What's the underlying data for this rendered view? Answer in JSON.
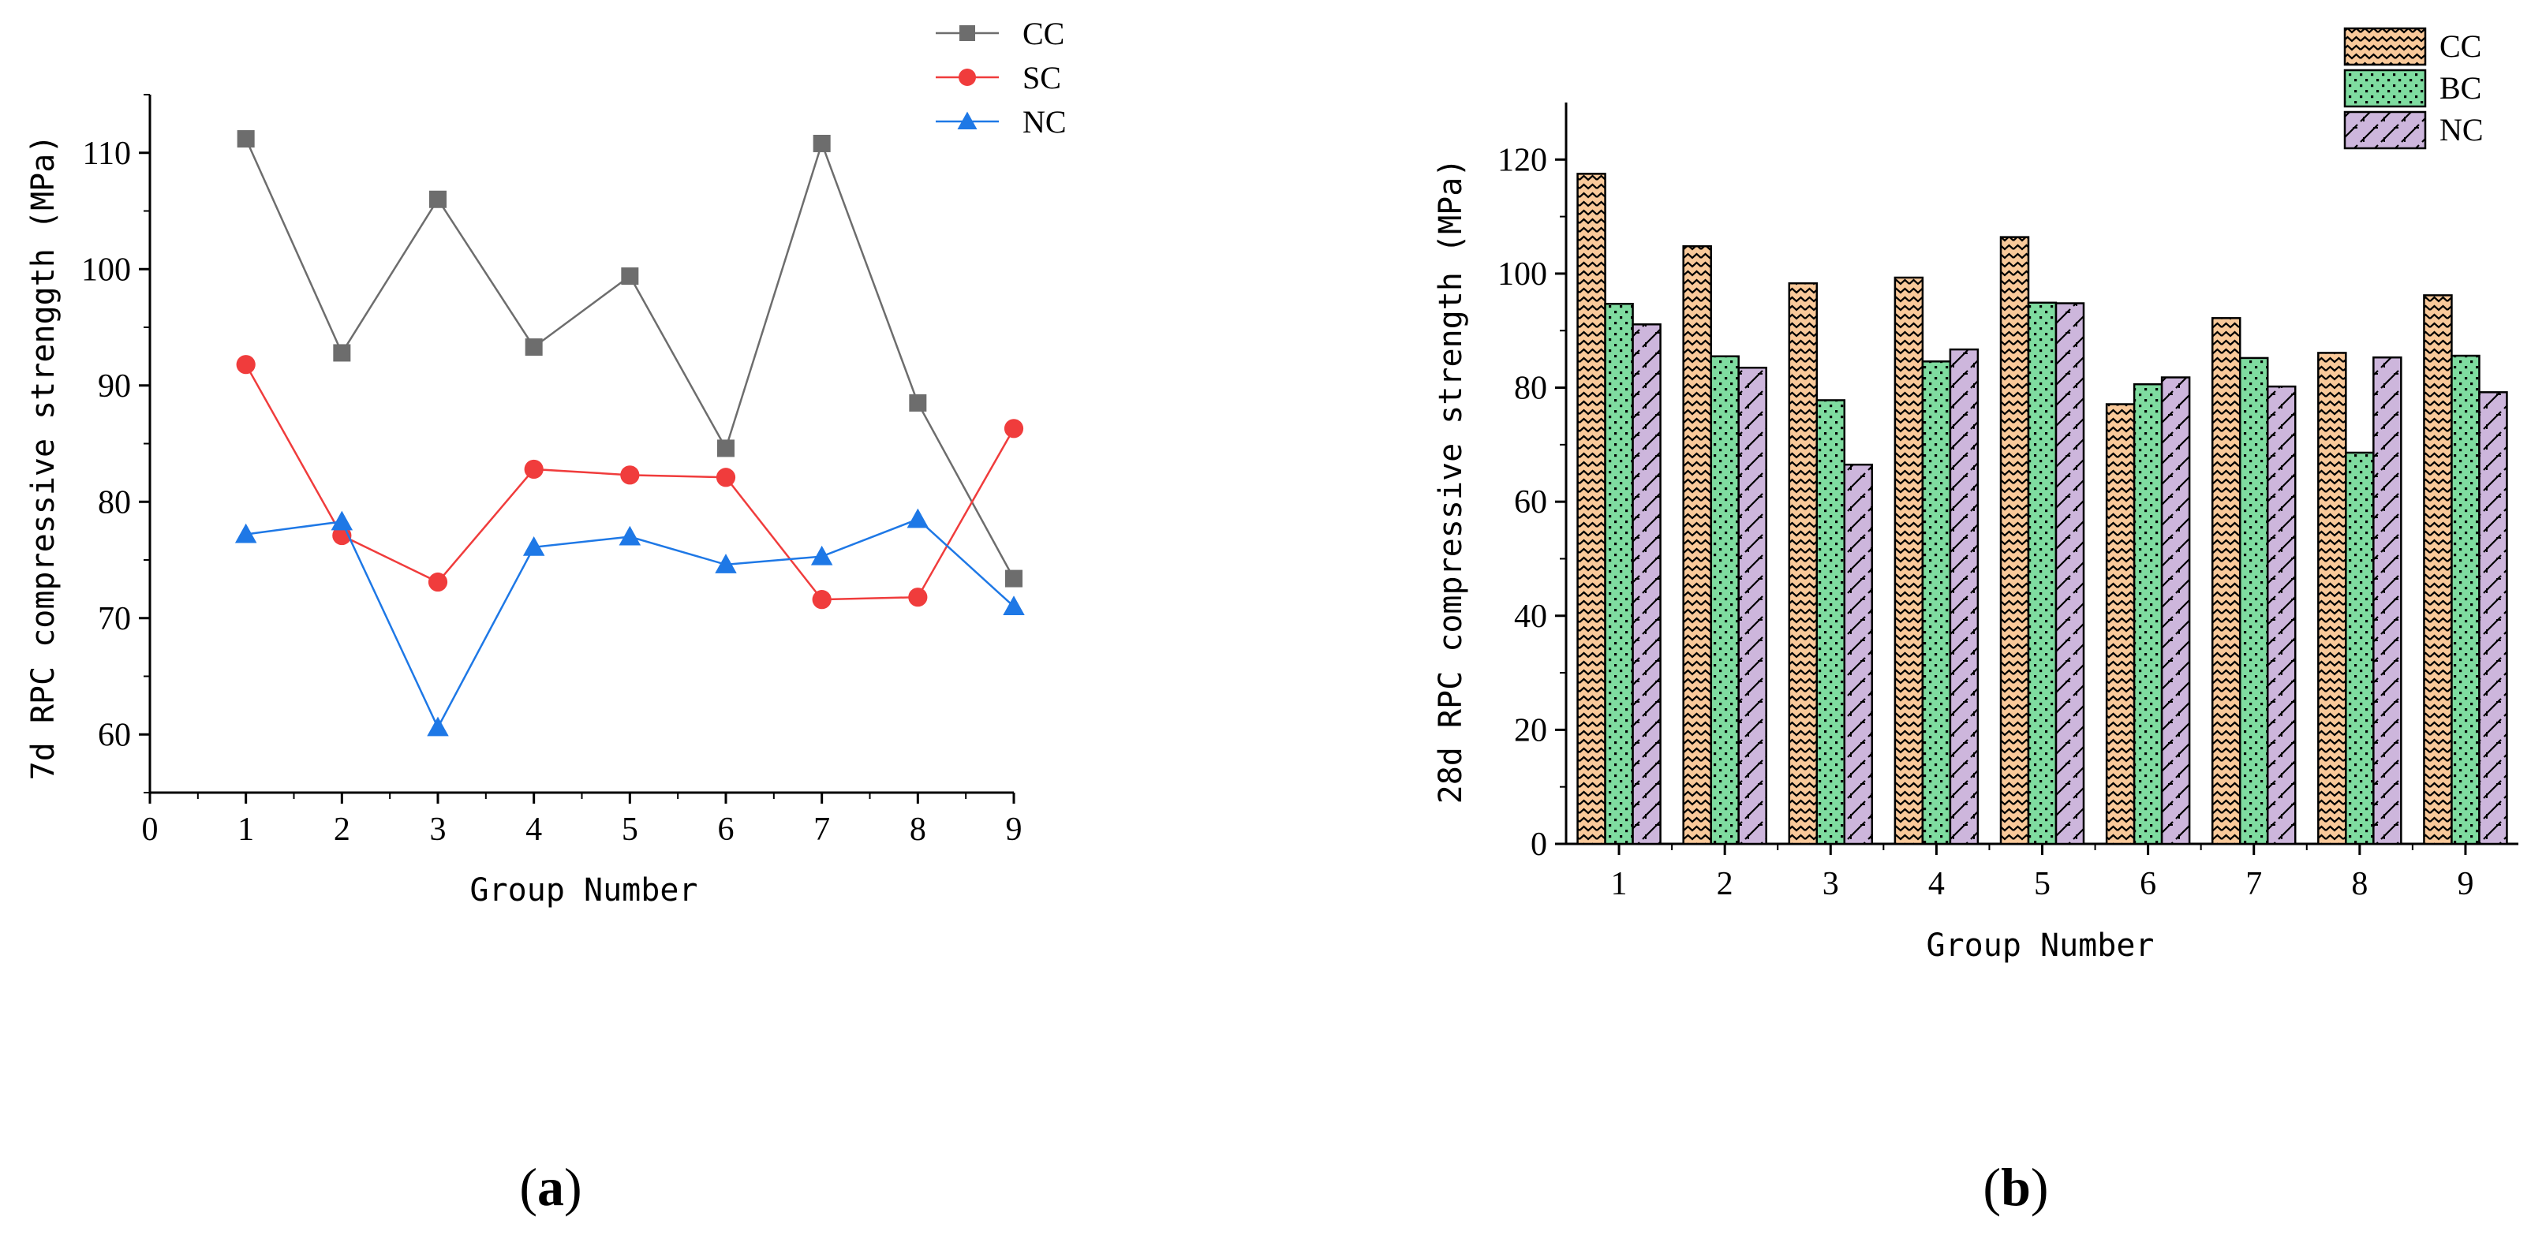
{
  "chart_data": [
    {
      "panel": "a",
      "caption_letter": "a",
      "type": "line",
      "title": "",
      "xlabel": "Group Number",
      "ylabel": "7d RPC compressive strenggth (MPa)",
      "xlim": [
        0,
        9
      ],
      "ylim": [
        55,
        115
      ],
      "xticks": [
        "0",
        "1",
        "2",
        "3",
        "4",
        "5",
        "6",
        "7",
        "8",
        "9"
      ],
      "yticks": [
        "60",
        "70",
        "80",
        "90",
        "100",
        "110"
      ],
      "x": [
        1,
        2,
        3,
        4,
        5,
        6,
        7,
        8,
        9
      ],
      "series": [
        {
          "name": "CC",
          "color": "#6d6d6d",
          "marker": "square",
          "values": [
            111.2,
            92.8,
            106.0,
            93.3,
            99.4,
            84.6,
            110.8,
            88.5,
            73.4
          ]
        },
        {
          "name": "SC",
          "color": "#f03c3c",
          "marker": "circle",
          "values": [
            91.8,
            77.1,
            73.1,
            82.8,
            82.3,
            82.1,
            71.6,
            71.8,
            86.3
          ]
        },
        {
          "name": "NC",
          "color": "#1e78e6",
          "marker": "triangle",
          "values": [
            77.2,
            78.3,
            60.6,
            76.1,
            77.0,
            74.6,
            75.3,
            78.5,
            71.0
          ]
        }
      ],
      "legend_position": "top-right"
    },
    {
      "panel": "b",
      "caption_letter": "b",
      "type": "bar",
      "title": "",
      "xlabel": "Group Number",
      "ylabel": "28d RPC compressive strength (MPa)",
      "ylim": [
        0,
        130
      ],
      "yticks": [
        "0",
        "20",
        "40",
        "60",
        "80",
        "100",
        "120"
      ],
      "categories": [
        "1",
        "2",
        "3",
        "4",
        "5",
        "6",
        "7",
        "8",
        "9"
      ],
      "series": [
        {
          "name": "CC",
          "color": "#f9c99a",
          "pattern": "zigzag",
          "values": [
            117.5,
            104.8,
            98.3,
            99.3,
            106.4,
            77.1,
            92.2,
            86.1,
            96.2
          ]
        },
        {
          "name": "BC",
          "color": "#7fdca0",
          "pattern": "dots",
          "values": [
            94.7,
            85.5,
            77.8,
            84.6,
            94.9,
            80.6,
            85.2,
            68.6,
            85.6
          ]
        },
        {
          "name": "NC",
          "color": "#cdb6dc",
          "pattern": "diagonal",
          "values": [
            91.1,
            83.5,
            66.5,
            86.7,
            94.8,
            81.8,
            80.2,
            85.3,
            79.2
          ]
        }
      ],
      "legend_position": "top-right"
    }
  ]
}
